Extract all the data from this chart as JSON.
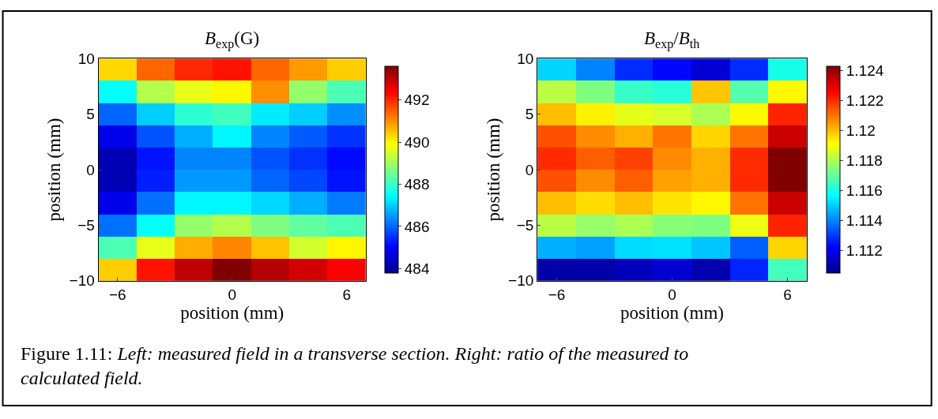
{
  "chart_data": [
    {
      "type": "heatmap",
      "title": "B$_{exp}$(G)",
      "xlabel": "position (mm)",
      "ylabel": "position (mm)",
      "x": [
        -6,
        -4,
        -2,
        0,
        2,
        4,
        6
      ],
      "y": [
        9,
        7,
        5,
        3,
        1,
        -1,
        -3,
        -5,
        -7,
        -9
      ],
      "xlim": [
        -7,
        7
      ],
      "ylim": [
        -10,
        10
      ],
      "xticks": [
        -6,
        0,
        6
      ],
      "yticks": [
        -10,
        -5,
        0,
        5,
        10
      ],
      "clim": [
        483.8,
        493.6
      ],
      "cticks": [
        484,
        486,
        488,
        490,
        492
      ],
      "cells": [
        [
          490.3,
          491.4,
          492.0,
          492.2,
          491.4,
          490.9,
          490.4
        ],
        [
          487.5,
          489.2,
          489.7,
          490.0,
          491.0,
          488.9,
          488.2
        ],
        [
          486.0,
          487.0,
          487.9,
          488.1,
          487.3,
          487.0,
          486.4
        ],
        [
          484.8,
          485.8,
          486.7,
          487.4,
          486.3,
          485.9,
          485.5
        ],
        [
          484.2,
          485.2,
          486.3,
          486.3,
          485.8,
          485.5,
          485.1
        ],
        [
          484.2,
          485.3,
          486.5,
          486.5,
          486.0,
          485.7,
          485.2
        ],
        [
          484.8,
          486.1,
          487.4,
          487.4,
          487.1,
          486.7,
          486.2
        ],
        [
          486.1,
          487.5,
          488.9,
          489.2,
          488.7,
          488.4,
          488.2
        ],
        [
          488.2,
          489.7,
          490.7,
          491.1,
          490.5,
          489.5,
          490.0
        ],
        [
          490.4,
          492.2,
          493.0,
          493.6,
          493.1,
          492.8,
          492.4
        ]
      ],
      "annotations": [
        "Figure 1.11: Left: measured field in a transverse section. Right: ratio of the measured to calculated field."
      ]
    },
    {
      "type": "heatmap",
      "title": "B$_{exp}$/B$_{th}$",
      "xlabel": "position (mm)",
      "ylabel": "position (mm)",
      "x": [
        -6,
        -4,
        -2,
        0,
        2,
        4,
        6
      ],
      "y": [
        9,
        7,
        5,
        3,
        1,
        -1,
        -3,
        -5,
        -7,
        -9
      ],
      "xlim": [
        -7,
        7
      ],
      "ylim": [
        -10,
        10
      ],
      "xticks": [
        -6,
        0,
        6
      ],
      "yticks": [
        -10,
        -5,
        0,
        5,
        10
      ],
      "clim": [
        1.1105,
        1.1243
      ],
      "cticks": [
        1.112,
        1.114,
        1.116,
        1.118,
        1.12,
        1.122,
        1.124
      ],
      "cells": [
        [
          1.1151,
          1.114,
          1.1128,
          1.1123,
          1.1116,
          1.1128,
          1.116
        ],
        [
          1.1182,
          1.1174,
          1.1164,
          1.1162,
          1.1199,
          1.1168,
          1.1192
        ],
        [
          1.12,
          1.1193,
          1.1188,
          1.1186,
          1.118,
          1.1192,
          1.1221
        ],
        [
          1.1215,
          1.1207,
          1.1202,
          1.121,
          1.1197,
          1.121,
          1.1233
        ],
        [
          1.122,
          1.1213,
          1.1217,
          1.1207,
          1.1202,
          1.122,
          1.1243
        ],
        [
          1.1215,
          1.1207,
          1.1213,
          1.1204,
          1.1202,
          1.122,
          1.1243
        ],
        [
          1.12,
          1.1196,
          1.12,
          1.1195,
          1.1192,
          1.121,
          1.1233
        ],
        [
          1.1182,
          1.1177,
          1.118,
          1.1175,
          1.1174,
          1.1189,
          1.1221
        ],
        [
          1.1146,
          1.1144,
          1.1152,
          1.1153,
          1.1149,
          1.1135,
          1.1197
        ],
        [
          1.1109,
          1.1109,
          1.1112,
          1.1115,
          1.111,
          1.1127,
          1.1166
        ]
      ]
    }
  ]
}
